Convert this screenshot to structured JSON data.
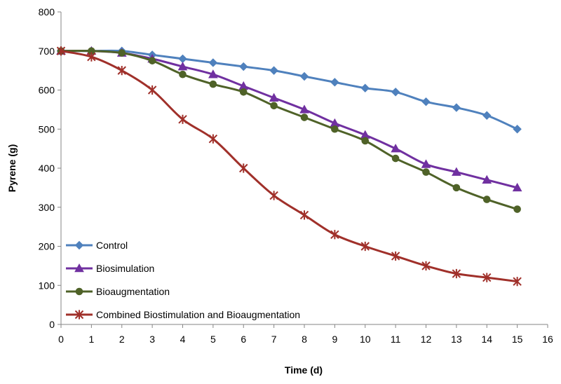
{
  "chart_data": {
    "type": "line",
    "title": "",
    "xlabel": "Time (d)",
    "ylabel": "Pyrene (g)",
    "xlim": [
      0,
      16
    ],
    "ylim": [
      0,
      800
    ],
    "xticks": [
      0,
      1,
      2,
      3,
      4,
      5,
      6,
      7,
      8,
      9,
      10,
      11,
      12,
      13,
      14,
      15,
      16
    ],
    "yticks": [
      0,
      100,
      200,
      300,
      400,
      500,
      600,
      700,
      800
    ],
    "grid": false,
    "legend_position": "bottom-left",
    "x": [
      0,
      1,
      2,
      3,
      4,
      5,
      6,
      7,
      8,
      9,
      10,
      11,
      12,
      13,
      14,
      15
    ],
    "series": [
      {
        "name": "Control",
        "color": "#4F81BD",
        "marker": "diamond",
        "values": [
          700,
          700,
          700,
          690,
          680,
          670,
          660,
          650,
          635,
          620,
          605,
          595,
          570,
          555,
          535,
          500
        ]
      },
      {
        "name": "Biosimulation",
        "color": "#7030A0",
        "marker": "triangle",
        "values": [
          700,
          700,
          695,
          680,
          660,
          640,
          610,
          580,
          550,
          515,
          485,
          450,
          410,
          390,
          370,
          350
        ]
      },
      {
        "name": "Bioaugmentation",
        "color": "#4F6228",
        "marker": "circle",
        "values": [
          700,
          700,
          695,
          675,
          640,
          615,
          595,
          560,
          530,
          500,
          470,
          425,
          390,
          350,
          320,
          295
        ]
      },
      {
        "name": "Combined Biostimulation and Bioaugmentation",
        "color": "#A0302A",
        "marker": "star",
        "values": [
          700,
          685,
          650,
          600,
          525,
          475,
          400,
          330,
          280,
          230,
          200,
          175,
          150,
          130,
          120,
          110
        ]
      }
    ]
  }
}
